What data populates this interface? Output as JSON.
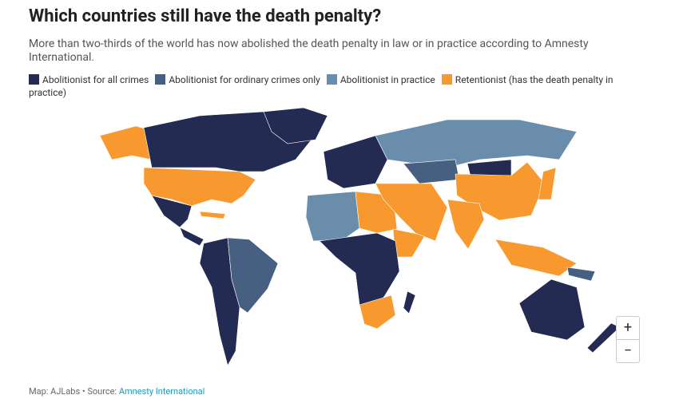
{
  "title": "Which countries still have the death penalty?",
  "subtitle": "More than two-thirds of the world has now abolished the death penalty in law or in practice according to Amnesty International.",
  "legend": [
    {
      "label": "Abolitionist for all crimes",
      "color": "#232b52"
    },
    {
      "label": "Abolitionist for ordinary crimes only",
      "color": "#475f80"
    },
    {
      "label": "Abolitionist in practice",
      "color": "#6a8dab"
    },
    {
      "label": "Retentionist (has the death penalty in practice)",
      "color": "#f7992e"
    }
  ],
  "zoom": {
    "in": "+",
    "out": "−"
  },
  "footer": {
    "text": "Map: AJLabs • Source:",
    "link": "Amnesty International"
  }
}
